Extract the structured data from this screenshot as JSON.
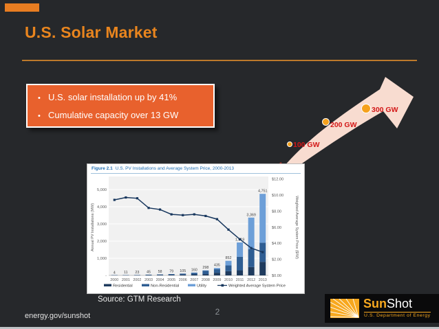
{
  "slide": {
    "title": "U.S. Solar Market",
    "bullets": [
      "U.S. solar installation up by 41%",
      "Cumulative capacity over 13 GW"
    ],
    "source": "Source: GTM Research",
    "footer_link": "energy.gov/sunshot",
    "page_number": "2"
  },
  "growth_arrow": {
    "milestones": [
      {
        "label": "100 GW"
      },
      {
        "label": "200 GW"
      },
      {
        "label": "300 GW"
      }
    ],
    "label_color": "#D31717",
    "arrow_fill": "#F8DCD0",
    "dot_color": "#F5A11C"
  },
  "logo": {
    "brand_primary": "Sun",
    "brand_secondary": "Shot",
    "subtitle": "U.S. Department of Energy",
    "accent_color": "#F7A81F"
  },
  "colors": {
    "background": "#26282B",
    "title_orange": "#E9851E",
    "divider_orange": "#BD7A2B",
    "callout_fill": "#E8612D",
    "callout_border": "#FFFFFF"
  },
  "chart_data": {
    "type": "bar",
    "subtype": "stacked bars with secondary-axis line",
    "figure_label": "Figure 2.1",
    "title": "U.S. PV Installations and Average System Price, 2000-2013",
    "categories": [
      "2000",
      "2001",
      "2002",
      "2003",
      "2004",
      "2005",
      "2006",
      "2007",
      "2008",
      "2009",
      "2010",
      "2011",
      "2012",
      "2013"
    ],
    "series": [
      {
        "name": "Residential",
        "color": "#1F3B5E",
        "values": [
          2,
          5,
          10,
          19,
          24,
          34,
          44,
          60,
          78,
          156,
          246,
          298,
          488,
          792
        ]
      },
      {
        "name": "Non-Residential",
        "color": "#2F5E93",
        "values": [
          2,
          6,
          13,
          26,
          34,
          45,
          61,
          92,
          198,
          215,
          334,
          791,
          1043,
          1112
        ]
      },
      {
        "name": "Utility",
        "color": "#6D9FD8",
        "values": [
          0,
          0,
          0,
          0,
          0,
          0,
          0,
          8,
          22,
          64,
          272,
          830,
          1838,
          2847
        ]
      }
    ],
    "bar_totals": [
      4,
      11,
      23,
      45,
      58,
      79,
      105,
      160,
      298,
      435,
      852,
      1919,
      3369,
      4751
    ],
    "bar_total_labels": [
      "4",
      "11",
      "23",
      "45",
      "58",
      "79",
      "105",
      "160",
      "298",
      "435",
      "852",
      "1,919",
      "3,369",
      "4,751"
    ],
    "line_series": {
      "name": "Weighted Average System Price",
      "color": "#17365D",
      "values": [
        9.4,
        9.7,
        9.6,
        8.4,
        8.2,
        7.6,
        7.5,
        7.6,
        7.4,
        7.0,
        5.7,
        4.5,
        3.4,
        2.9
      ]
    },
    "ylabel_left": "Annual PV Installations (MW)",
    "ylabel_right": "Weighted Average System Price ($/W)",
    "yticks_left_labels": [
      "5,000",
      "4,000",
      "3,000",
      "2,000",
      "1,000",
      "-"
    ],
    "yticks_left_values": [
      5000,
      4000,
      3000,
      2000,
      1000,
      0
    ],
    "yticks_right_labels": [
      "$12.00",
      "$10.00",
      "$8.00",
      "$6.00",
      "$4.00",
      "$2.00",
      "$0.00"
    ],
    "yticks_right_values": [
      12,
      10,
      8,
      6,
      4,
      2,
      0
    ],
    "ylim_left": [
      0,
      5000
    ],
    "ylim_right": [
      0,
      12
    ],
    "grid": true,
    "legend_position": "bottom"
  }
}
